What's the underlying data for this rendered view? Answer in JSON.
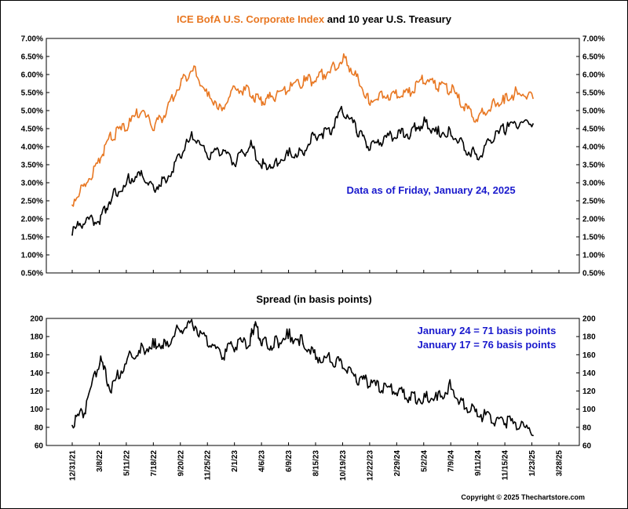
{
  "chart_data": [
    {
      "type": "line",
      "title_parts": [
        {
          "text": "ICE BofA U.S. Corporate Index",
          "color": "#e87722"
        },
        {
          "text": " and 10 year U.S. Treasury",
          "color": "#000000"
        }
      ],
      "ylim": [
        0.5,
        7.0
      ],
      "yticks": [
        "0.50%",
        "1.00%",
        "1.50%",
        "2.00%",
        "2.50%",
        "3.00%",
        "3.50%",
        "4.00%",
        "4.50%",
        "5.00%",
        "5.50%",
        "6.00%",
        "6.50%",
        "7.00%"
      ],
      "grid": false,
      "annotation": "Data as of Friday, January 24, 2025",
      "series": [
        {
          "key": "corporate",
          "color": "#e87722",
          "x": [
            "2021-12-31",
            "2022-02-01",
            "2022-03-08",
            "2022-04-05",
            "2022-05-11",
            "2022-06-14",
            "2022-07-18",
            "2022-08-16",
            "2022-09-20",
            "2022-10-20",
            "2022-11-25",
            "2022-12-30",
            "2023-02-01",
            "2023-03-08",
            "2023-04-06",
            "2023-05-05",
            "2023-06-09",
            "2023-07-15",
            "2023-08-15",
            "2023-09-19",
            "2023-10-19",
            "2023-11-22",
            "2023-12-22",
            "2024-01-25",
            "2024-02-29",
            "2024-04-01",
            "2024-05-02",
            "2024-06-05",
            "2024-07-09",
            "2024-08-10",
            "2024-09-11",
            "2024-10-15",
            "2024-11-15",
            "2024-12-18",
            "2025-01-24"
          ],
          "values": [
            2.38,
            2.9,
            3.55,
            4.2,
            4.45,
            4.9,
            4.45,
            4.9,
            5.7,
            6.1,
            5.4,
            5.0,
            5.6,
            5.4,
            5.15,
            5.3,
            5.55,
            5.7,
            5.8,
            6.05,
            6.35,
            5.95,
            5.2,
            5.35,
            5.35,
            5.4,
            5.75,
            5.6,
            5.5,
            5.0,
            4.7,
            5.1,
            5.2,
            5.45,
            5.34
          ]
        },
        {
          "key": "treasury",
          "color": "#000000",
          "x": [
            "2021-12-31",
            "2022-02-01",
            "2022-03-08",
            "2022-04-05",
            "2022-05-11",
            "2022-06-14",
            "2022-07-18",
            "2022-08-16",
            "2022-09-20",
            "2022-10-20",
            "2022-11-25",
            "2022-12-30",
            "2023-02-01",
            "2023-03-08",
            "2023-04-06",
            "2023-05-05",
            "2023-06-09",
            "2023-07-15",
            "2023-08-15",
            "2023-09-19",
            "2023-10-19",
            "2023-11-22",
            "2023-12-22",
            "2024-01-25",
            "2024-02-29",
            "2024-04-01",
            "2024-05-02",
            "2024-06-05",
            "2024-07-09",
            "2024-08-10",
            "2024-09-11",
            "2024-10-15",
            "2024-11-15",
            "2024-12-18",
            "2025-01-24"
          ],
          "values": [
            1.55,
            1.9,
            1.85,
            2.5,
            2.95,
            3.2,
            2.8,
            3.0,
            3.7,
            4.2,
            3.7,
            3.8,
            3.45,
            4.0,
            3.4,
            3.45,
            3.75,
            3.8,
            4.25,
            4.35,
            4.95,
            4.4,
            3.9,
            4.1,
            4.25,
            4.3,
            4.6,
            4.35,
            4.3,
            3.9,
            3.65,
            4.1,
            4.4,
            4.5,
            4.63
          ]
        }
      ]
    },
    {
      "type": "line",
      "title": "Spread (in basis points)",
      "ylim": [
        60,
        200
      ],
      "yticks": [
        "60",
        "80",
        "100",
        "120",
        "140",
        "160",
        "180",
        "200"
      ],
      "grid": false,
      "annotations": [
        "January 24 = 71 basis points",
        "January 17 = 76 basis points"
      ],
      "annotation_color": "#1a1acd",
      "xticks": [
        "12/31/21",
        "3/8/22",
        "5/11/22",
        "7/18/22",
        "9/20/22",
        "11/25/22",
        "2/1/23",
        "4/6/23",
        "6/9/23",
        "8/15/23",
        "10/19/23",
        "12/22/23",
        "2/29/24",
        "5/2/24",
        "7/9/24",
        "9/11/24",
        "11/15/24",
        "1/23/25",
        "3/28/25"
      ],
      "series": [
        {
          "key": "spread",
          "color": "#000000",
          "x": [
            "2021-12-31",
            "2022-02-01",
            "2022-03-08",
            "2022-04-05",
            "2022-05-11",
            "2022-06-14",
            "2022-07-18",
            "2022-08-16",
            "2022-09-20",
            "2022-10-20",
            "2022-11-25",
            "2022-12-30",
            "2023-02-01",
            "2023-03-08",
            "2023-03-20",
            "2023-04-06",
            "2023-05-05",
            "2023-06-09",
            "2023-07-15",
            "2023-08-15",
            "2023-09-19",
            "2023-10-19",
            "2023-11-22",
            "2023-12-22",
            "2024-01-25",
            "2024-02-29",
            "2024-04-01",
            "2024-05-02",
            "2024-06-05",
            "2024-07-09",
            "2024-08-10",
            "2024-09-11",
            "2024-10-15",
            "2024-11-15",
            "2024-12-18",
            "2025-01-24"
          ],
          "values": [
            82,
            95,
            150,
            118,
            150,
            162,
            168,
            170,
            185,
            192,
            170,
            155,
            168,
            170,
            192,
            170,
            168,
            178,
            172,
            155,
            152,
            145,
            130,
            125,
            118,
            115,
            110,
            108,
            110,
            122,
            100,
            92,
            85,
            83,
            78,
            71
          ]
        }
      ]
    }
  ],
  "copyright": "Copyright © 2025 Thechartstore.com"
}
